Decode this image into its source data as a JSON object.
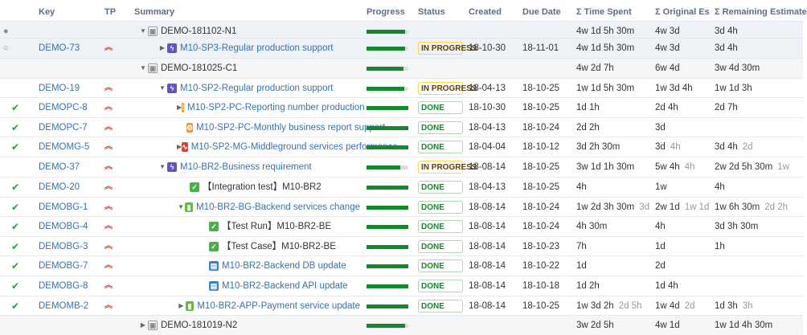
{
  "headers": {
    "key": "Key",
    "tp": "TP",
    "summary": "Summary",
    "progress": "Progress",
    "status": "Status",
    "created": "Created",
    "due": "Due Date",
    "spent": "Σ Time Spent",
    "orig": "Σ Original Es",
    "rem": "Σ Remaining Estimate"
  },
  "rows": [
    {
      "key": "",
      "sum": "DEMO-181102-N1",
      "created": "",
      "due": "",
      "spent": "4w 1d 5h 30m",
      "orig": "4w 3d",
      "rem": "3d 4h"
    },
    {
      "key": "DEMO-73",
      "sum": "M10-SP3-Regular production support",
      "status": "IN PROGRESS",
      "created": "18-10-30",
      "due": "18-11-01",
      "spent": "4w 1d 5h 30m",
      "orig": "4w 3d",
      "rem": "3d 4h"
    },
    {
      "key": "",
      "sum": "DEMO-181025-C1",
      "created": "",
      "due": "",
      "spent": "4w 2d 7h",
      "orig": "6w 4d",
      "rem": "3w 4d 30m"
    },
    {
      "key": "DEMO-19",
      "sum": "M10-SP2-Regular production support",
      "status": "IN PROGRESS",
      "created": "18-04-13",
      "due": "18-10-25",
      "spent": "1w 1d 5h 30m",
      "orig": "1w 3d 4h",
      "rem": "1w 1d 3h"
    },
    {
      "key": "DEMOPC-8",
      "sum": "M10-SP2-PC-Reporting number production",
      "status": "DONE",
      "created": "18-10-30",
      "due": "18-10-25",
      "spent": "1d 1h",
      "orig": "2d 4h",
      "rem": "2d 7h"
    },
    {
      "key": "DEMOPC-7",
      "sum": "M10-SP2-PC-Monthly business report support",
      "status": "DONE",
      "created": "18-04-13",
      "due": "18-10-24",
      "spent": "2d 2h",
      "orig": "3d",
      "rem": ""
    },
    {
      "key": "DEMOMG-5",
      "sum": "M10-SP2-MG-Middleground services performance",
      "status": "DONE",
      "created": "18-04-04",
      "due": "18-10-12",
      "spent": "3d 2h 30m",
      "orig": "3d",
      "orig2": "4h",
      "rem": "3d 4h",
      "rem2": "2d"
    },
    {
      "key": "DEMO-37",
      "sum": "M10-BR2-Business requirement",
      "status": "IN PROGRESS",
      "created": "18-08-14",
      "due": "18-10-25",
      "spent": "3w 1d 1h 30m",
      "orig": "5w 4h",
      "orig2": "4h",
      "rem": "2w 2d 5h 30m",
      "rem2": "1w"
    },
    {
      "key": "DEMO-20",
      "sum": "【Integration test】M10-BR2",
      "status": "DONE",
      "created": "18-04-13",
      "due": "18-10-25",
      "spent": "4h",
      "orig": "1w",
      "rem": "4h"
    },
    {
      "key": "DEMOBG-1",
      "sum": "M10-BR2-BG-Backend services change",
      "status": "DONE",
      "created": "18-08-14",
      "due": "18-10-24",
      "spent": "1w 2d 3h 30m",
      "spent2": "3d",
      "orig": "2w 1d",
      "orig2": "1w 1d",
      "rem": "1w 6h 30m",
      "rem2": "2d 2h"
    },
    {
      "key": "DEMOBG-4",
      "sum": "【Test Run】M10-BR2-BE",
      "status": "DONE",
      "created": "18-08-14",
      "due": "18-10-24",
      "spent": "4h 30m",
      "orig": "4h",
      "rem": "3d 3h 30m"
    },
    {
      "key": "DEMOBG-3",
      "sum": "【Test Case】M10-BR2-BE",
      "status": "DONE",
      "created": "18-08-14",
      "due": "18-10-23",
      "spent": "7h",
      "orig": "1d",
      "rem": "1h"
    },
    {
      "key": "DEMOBG-7",
      "sum": "M10-BR2-Backend DB update",
      "status": "DONE",
      "created": "18-08-14",
      "due": "18-10-22",
      "spent": "1d",
      "orig": "2d",
      "rem": ""
    },
    {
      "key": "DEMOBG-8",
      "sum": "M10-BR2-Backend API update",
      "status": "DONE",
      "created": "18-08-14",
      "due": "18-10-18",
      "spent": "1d 2h",
      "orig": "1d 4h",
      "rem": ""
    },
    {
      "key": "DEMOMB-2",
      "sum": "M10-BR2-APP-Payment service update",
      "status": "DONE",
      "created": "18-08-14",
      "due": "18-10-25",
      "spent": "1w 3d 2h",
      "spent2": "2d 5h",
      "orig": "1w 4d",
      "orig2": "2d",
      "rem": "1d 3h",
      "rem2": "3h"
    },
    {
      "key": "",
      "sum": "DEMO-181019-N2",
      "created": "",
      "due": "",
      "spent": "3w 2d 5h",
      "orig": "4w 1d",
      "rem": "1w 1d 4h 30m"
    }
  ],
  "icons": {
    "group": "package-icon",
    "epic": "lightning-icon",
    "story": "story-icon",
    "task": "checkbox-icon",
    "bug": "warning-icon",
    "subtask": "doc-icon"
  },
  "colors": {
    "done": "#14892c",
    "inprogress": "#594300",
    "key": "#3572b0",
    "priority": "#d04437"
  }
}
